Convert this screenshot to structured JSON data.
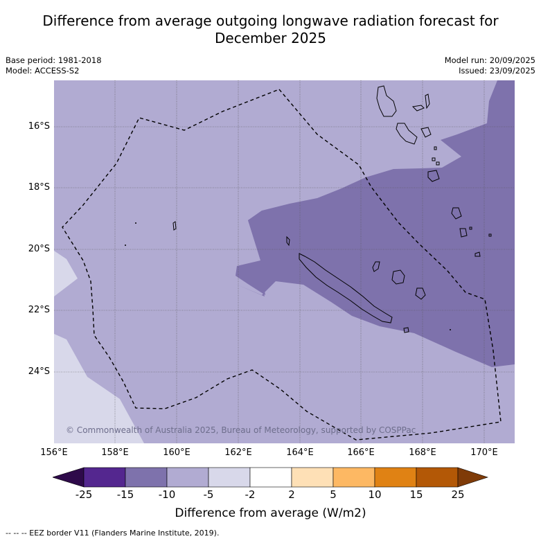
{
  "title_line1": "Difference from average outgoing longwave radiation forecast for",
  "title_line2": "December 2025",
  "base_period": "Base period: 1981-2018",
  "model": "Model: ACCESS-S2",
  "model_run": "Model run: 20/09/2025",
  "issued": "Issued: 23/09/2025",
  "lat_labels": [
    "16°S",
    "18°S",
    "20°S",
    "22°S",
    "24°S"
  ],
  "lon_labels": [
    "156°E",
    "158°E",
    "160°E",
    "162°E",
    "164°E",
    "166°E",
    "168°E",
    "170°E"
  ],
  "copyright": "© Commonwealth of Australia 2025, Bureau of Meteorology, supported by COSPPac",
  "colorbar": {
    "ticks": [
      "-25",
      "-15",
      "-10",
      "-5",
      "-2",
      "2",
      "5",
      "10",
      "15",
      "25"
    ],
    "colors": {
      "under": "#2e0a4a",
      "c1": "#54278f",
      "c2": "#7e72ac",
      "c3": "#b1abd2",
      "c4": "#d8d8ea",
      "c5": "#ffffff",
      "c6": "#fee0b6",
      "c7": "#fdb863",
      "c8": "#e08214",
      "c9": "#b35806",
      "over": "#7f3b08"
    },
    "label": "Difference from average (W/m2)"
  },
  "footer": "-- -- -- EEZ border V11 (Flanders Marine Institute, 2019)."
}
